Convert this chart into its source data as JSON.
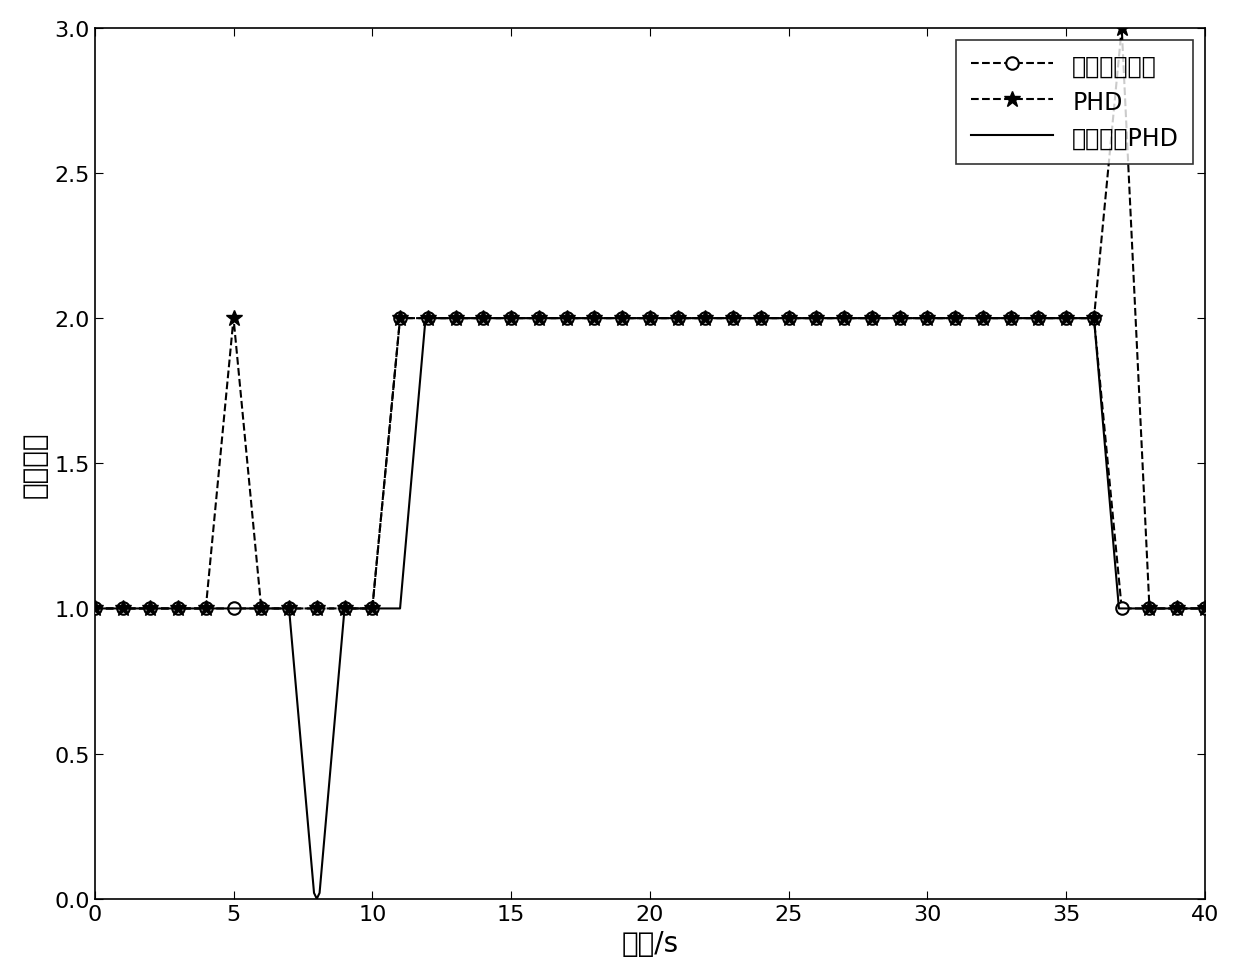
{
  "title": "",
  "xlabel": "时间/s",
  "ylabel": "目标数目",
  "xlim": [
    0,
    40
  ],
  "ylim": [
    0,
    3
  ],
  "yticks": [
    0,
    0.5,
    1,
    1.5,
    2,
    2.5,
    3
  ],
  "xticks": [
    0,
    5,
    10,
    15,
    20,
    25,
    30,
    35,
    40
  ],
  "true_target_x": [
    0,
    1,
    2,
    3,
    4,
    5,
    6,
    7,
    8,
    9,
    10,
    11,
    12,
    13,
    14,
    15,
    16,
    17,
    18,
    19,
    20,
    21,
    22,
    23,
    24,
    25,
    26,
    27,
    28,
    29,
    30,
    31,
    32,
    33,
    34,
    35,
    36,
    37,
    38,
    39,
    40
  ],
  "true_target_y": [
    1,
    1,
    1,
    1,
    1,
    1,
    1,
    1,
    1,
    1,
    1,
    2,
    2,
    2,
    2,
    2,
    2,
    2,
    2,
    2,
    2,
    2,
    2,
    2,
    2,
    2,
    2,
    2,
    2,
    2,
    2,
    2,
    2,
    2,
    2,
    2,
    2,
    1,
    1,
    1,
    1
  ],
  "phd_x": [
    0,
    1,
    2,
    3,
    4,
    5,
    6,
    7,
    8,
    9,
    10,
    11,
    12,
    13,
    14,
    15,
    16,
    17,
    18,
    19,
    20,
    21,
    22,
    23,
    24,
    25,
    26,
    27,
    28,
    29,
    30,
    31,
    32,
    33,
    34,
    35,
    36,
    37,
    38,
    39,
    40
  ],
  "phd_y": [
    1,
    1,
    1,
    1,
    1,
    2,
    1,
    1,
    1,
    1,
    1,
    2,
    2,
    2,
    2,
    2,
    2,
    2,
    2,
    2,
    2,
    2,
    2,
    2,
    2,
    2,
    2,
    2,
    2,
    2,
    2,
    2,
    2,
    2,
    2,
    2,
    2,
    3,
    1,
    1,
    1
  ],
  "assoc_phd_x": [
    0,
    1,
    2,
    3,
    4,
    5,
    6,
    7,
    7.9,
    8,
    8.1,
    9,
    10,
    11,
    11.9,
    12,
    13,
    14,
    15,
    16,
    17,
    18,
    19,
    20,
    21,
    22,
    23,
    24,
    25,
    26,
    27,
    28,
    29,
    30,
    31,
    32,
    33,
    34,
    35,
    36,
    36.9,
    37,
    37.1,
    38,
    39,
    40
  ],
  "assoc_phd_y": [
    1,
    1,
    1,
    1,
    1,
    1,
    1,
    1,
    0.02,
    0,
    0.02,
    1,
    1,
    1,
    1.98,
    2,
    2,
    2,
    2,
    2,
    2,
    2,
    2,
    2,
    2,
    2,
    2,
    2,
    2,
    2,
    2,
    2,
    2,
    2,
    2,
    2,
    2,
    2,
    2,
    2,
    1,
    1,
    1,
    1,
    1,
    1
  ],
  "legend_true": "真实目标数目",
  "legend_phd": "PHD",
  "legend_assoc": "关联后的PHD",
  "line_color": "black",
  "bg_color": "white",
  "fontsize_label": 20,
  "fontsize_tick": 16,
  "fontsize_legend": 17
}
